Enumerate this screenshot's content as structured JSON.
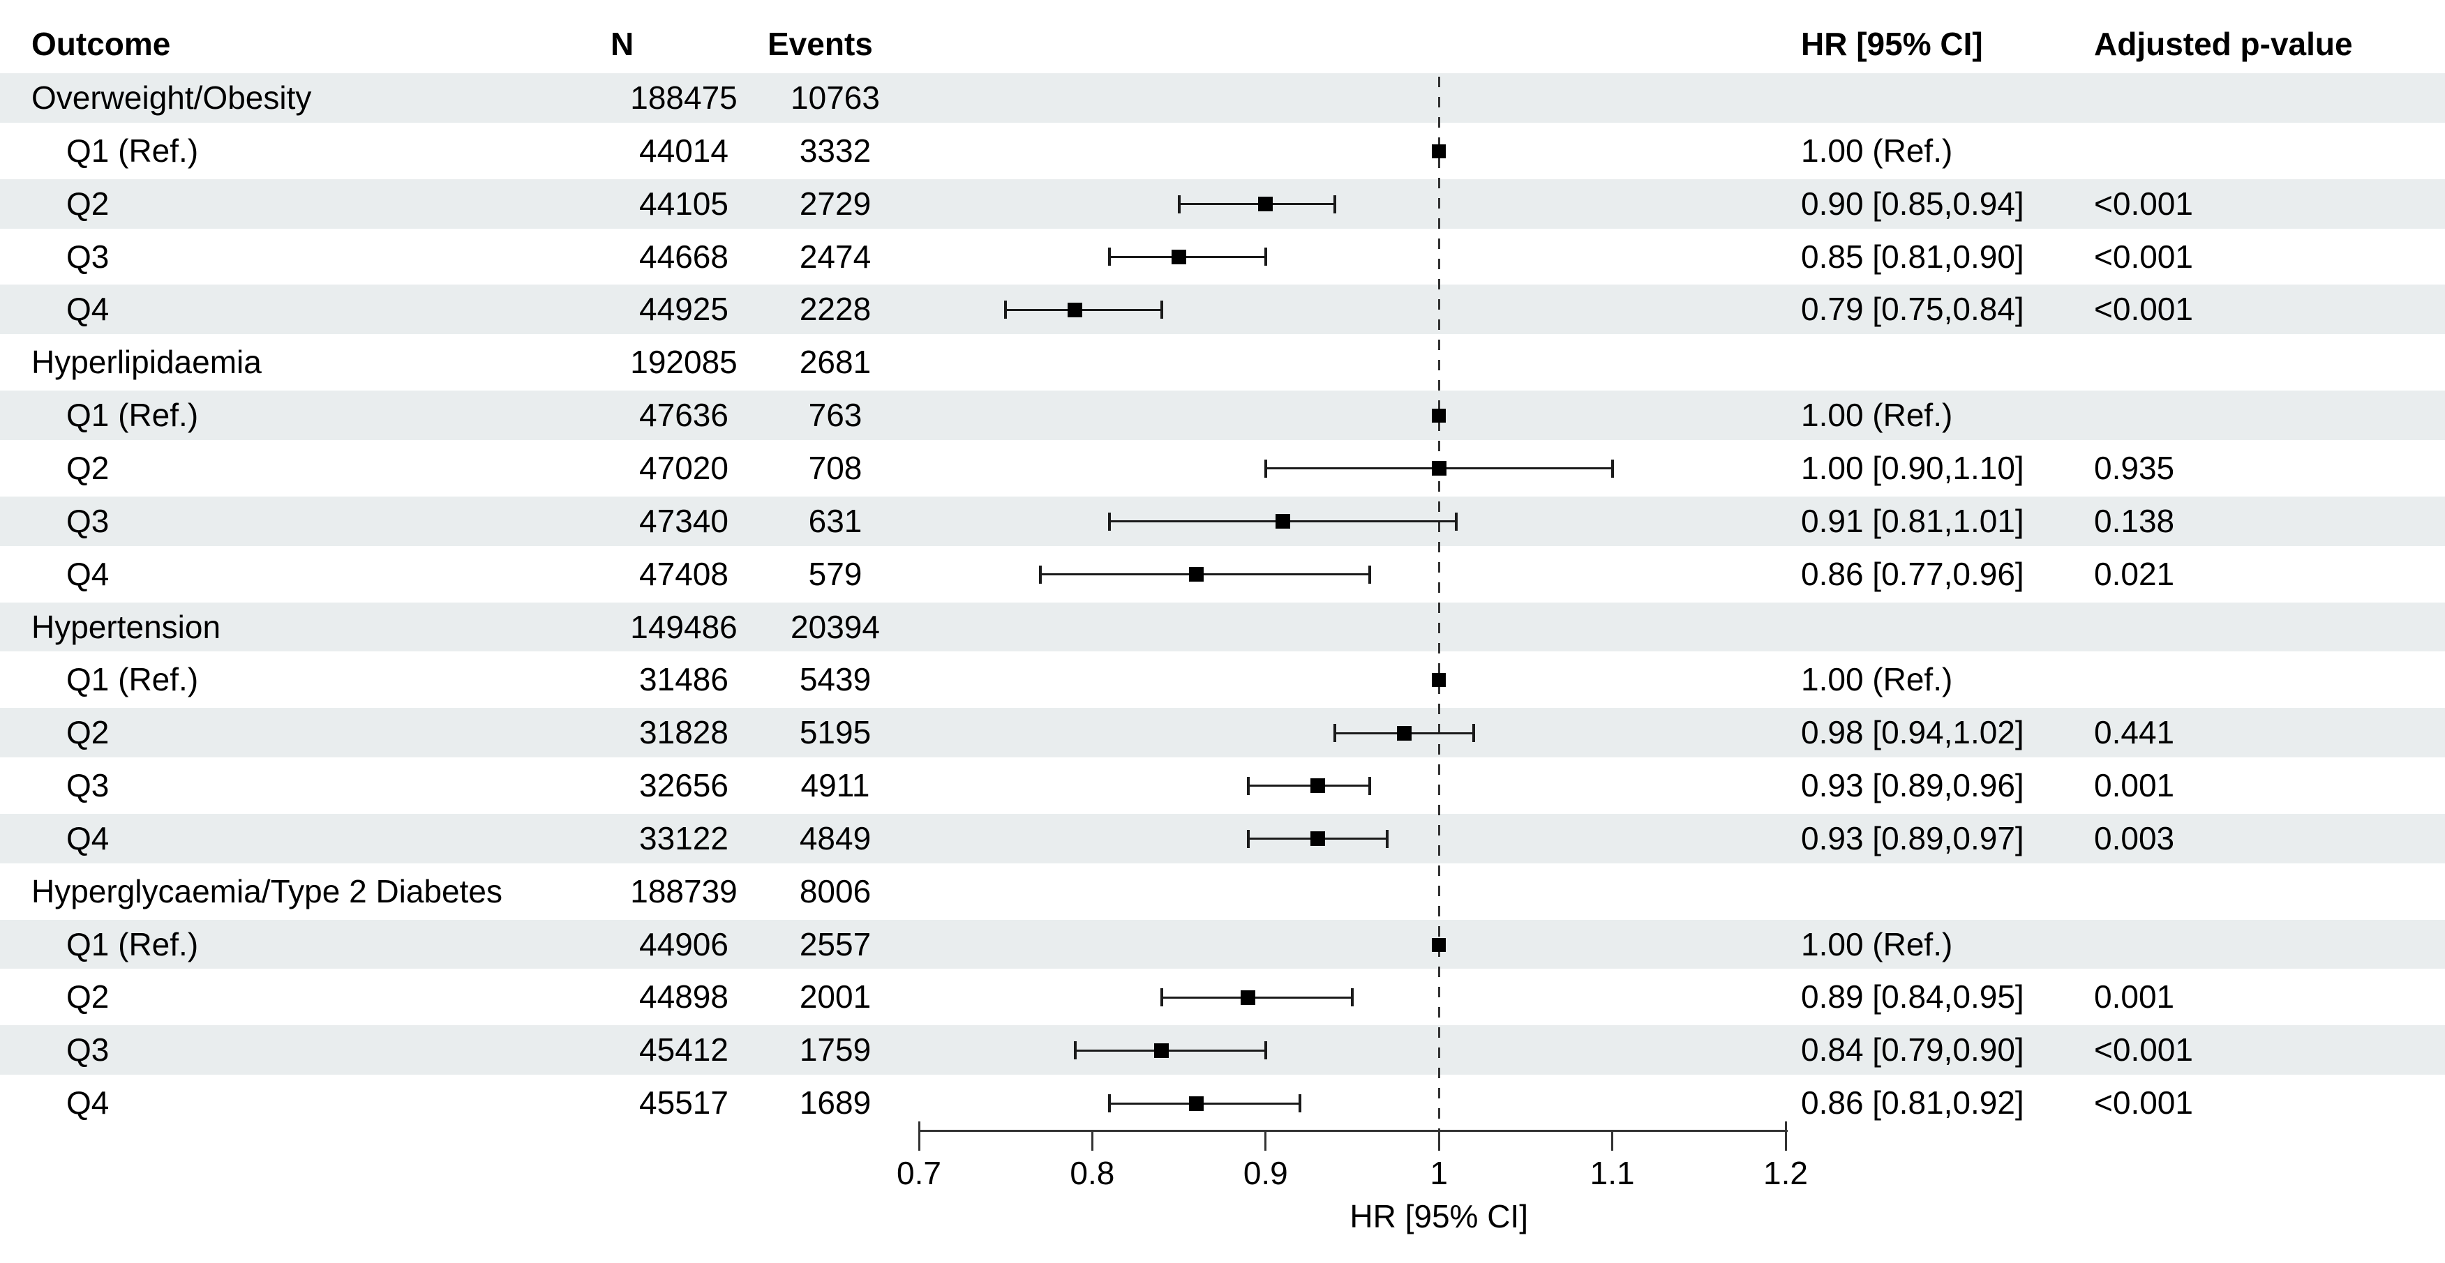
{
  "header": {
    "outcome": "Outcome",
    "n": "N",
    "events": "Events",
    "hr_ci": "HR [95% CI]",
    "adjusted_p": "Adjusted p-value"
  },
  "colors": {
    "stripe": "#e9edee",
    "text": "#000000",
    "marker": "#000000",
    "ci_line": "#1a1a1a",
    "axis": "#333333",
    "ref_line": "#333333"
  },
  "chart_data": {
    "type": "forest_plot",
    "xlabel": "HR [95% CI]",
    "columns": [
      "Outcome",
      "N",
      "Events",
      "HR [95% CI]",
      "Adjusted p-value"
    ],
    "x_axis": {
      "min": 0.7,
      "max": 1.2,
      "reference_line": 1.0,
      "ticks": [
        {
          "v": 0.7,
          "label": "0.7"
        },
        {
          "v": 0.8,
          "label": "0.8"
        },
        {
          "v": 0.9,
          "label": "0.9"
        },
        {
          "v": 1.0,
          "label": "1"
        },
        {
          "v": 1.1,
          "label": "1.1"
        },
        {
          "v": 1.2,
          "label": "1.2"
        }
      ]
    },
    "rows": [
      {
        "label": "Overweight/Obesity",
        "indent": 0,
        "n": "188475",
        "events": "10763",
        "hr_text": "",
        "p": ""
      },
      {
        "label": "Q1 (Ref.)",
        "indent": 1,
        "n": "44014",
        "events": "3332",
        "hr_text": "1.00 (Ref.)",
        "p": "",
        "est": 1.0,
        "ref": true
      },
      {
        "label": "Q2",
        "indent": 1,
        "n": "44105",
        "events": "2729",
        "hr_text": "0.90 [0.85,0.94]",
        "p": "<0.001",
        "est": 0.9,
        "lo": 0.85,
        "hi": 0.94
      },
      {
        "label": "Q3",
        "indent": 1,
        "n": "44668",
        "events": "2474",
        "hr_text": "0.85 [0.81,0.90]",
        "p": "<0.001",
        "est": 0.85,
        "lo": 0.81,
        "hi": 0.9
      },
      {
        "label": "Q4",
        "indent": 1,
        "n": "44925",
        "events": "2228",
        "hr_text": "0.79 [0.75,0.84]",
        "p": "<0.001",
        "est": 0.79,
        "lo": 0.75,
        "hi": 0.84
      },
      {
        "label": "Hyperlipidaemia",
        "indent": 0,
        "n": "192085",
        "events": "2681",
        "hr_text": "",
        "p": ""
      },
      {
        "label": "Q1 (Ref.)",
        "indent": 1,
        "n": "47636",
        "events": "763",
        "hr_text": "1.00 (Ref.)",
        "p": "",
        "est": 1.0,
        "ref": true
      },
      {
        "label": "Q2",
        "indent": 1,
        "n": "47020",
        "events": "708",
        "hr_text": "1.00 [0.90,1.10]",
        "p": "0.935",
        "est": 1.0,
        "lo": 0.9,
        "hi": 1.1
      },
      {
        "label": "Q3",
        "indent": 1,
        "n": "47340",
        "events": "631",
        "hr_text": "0.91 [0.81,1.01]",
        "p": "0.138",
        "est": 0.91,
        "lo": 0.81,
        "hi": 1.01
      },
      {
        "label": "Q4",
        "indent": 1,
        "n": "47408",
        "events": "579",
        "hr_text": "0.86 [0.77,0.96]",
        "p": "0.021",
        "est": 0.86,
        "lo": 0.77,
        "hi": 0.96
      },
      {
        "label": "Hypertension",
        "indent": 0,
        "n": "149486",
        "events": "20394",
        "hr_text": "",
        "p": ""
      },
      {
        "label": "Q1 (Ref.)",
        "indent": 1,
        "n": "31486",
        "events": "5439",
        "hr_text": "1.00 (Ref.)",
        "p": "",
        "est": 1.0,
        "ref": true
      },
      {
        "label": "Q2",
        "indent": 1,
        "n": "31828",
        "events": "5195",
        "hr_text": "0.98 [0.94,1.02]",
        "p": "0.441",
        "est": 0.98,
        "lo": 0.94,
        "hi": 1.02
      },
      {
        "label": "Q3",
        "indent": 1,
        "n": "32656",
        "events": "4911",
        "hr_text": "0.93 [0.89,0.96]",
        "p": "0.001",
        "est": 0.93,
        "lo": 0.89,
        "hi": 0.96
      },
      {
        "label": "Q4",
        "indent": 1,
        "n": "33122",
        "events": "4849",
        "hr_text": "0.93 [0.89,0.97]",
        "p": "0.003",
        "est": 0.93,
        "lo": 0.89,
        "hi": 0.97
      },
      {
        "label": "Hyperglycaemia/Type 2 Diabetes",
        "indent": 0,
        "n": "188739",
        "events": "8006",
        "hr_text": "",
        "p": ""
      },
      {
        "label": "Q1 (Ref.)",
        "indent": 1,
        "n": "44906",
        "events": "2557",
        "hr_text": "1.00 (Ref.)",
        "p": "",
        "est": 1.0,
        "ref": true
      },
      {
        "label": "Q2",
        "indent": 1,
        "n": "44898",
        "events": "2001",
        "hr_text": "0.89 [0.84,0.95]",
        "p": "0.001",
        "est": 0.89,
        "lo": 0.84,
        "hi": 0.95
      },
      {
        "label": "Q3",
        "indent": 1,
        "n": "45412",
        "events": "1759",
        "hr_text": "0.84 [0.79,0.90]",
        "p": "<0.001",
        "est": 0.84,
        "lo": 0.79,
        "hi": 0.9
      },
      {
        "label": "Q4",
        "indent": 1,
        "n": "45517",
        "events": "1689",
        "hr_text": "0.86 [0.81,0.92]",
        "p": "<0.001",
        "est": 0.86,
        "lo": 0.81,
        "hi": 0.92
      }
    ]
  }
}
